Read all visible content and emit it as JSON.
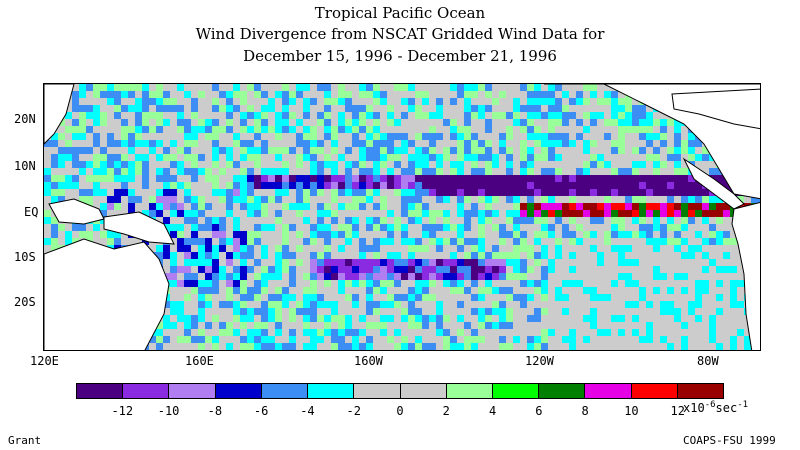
{
  "title": {
    "line1": "Tropical Pacific Ocean",
    "line2": "Wind Divergence from NSCAT Gridded Wind Data for",
    "line3": "December 15, 1996 - December 21, 1996"
  },
  "map": {
    "lat_labels": [
      "20N",
      "10N",
      "EQ",
      "10S",
      "20S"
    ],
    "lon_labels": [
      "120E",
      "160E",
      "160W",
      "120W",
      "80W"
    ],
    "lat_range": [
      -30,
      30
    ],
    "lon_range_deg_east": [
      120,
      285
    ]
  },
  "legend": {
    "colors": [
      "#4b0082",
      "#8a2be2",
      "#b07ef0",
      "#0000cd",
      "#3c8ef5",
      "#00ffff",
      "#cccccc",
      "#cccccc",
      "#99ff99",
      "#00ff00",
      "#007f00",
      "#e600e6",
      "#ff0000",
      "#990000"
    ],
    "ticks": [
      "-12",
      "-10",
      "-8",
      "-6",
      "-4",
      "-2",
      "0",
      "2",
      "4",
      "6",
      "8",
      "10",
      "12"
    ],
    "unit_base": "x10",
    "unit_exp": "-6",
    "unit_tail": "sec",
    "unit_tail_exp": "-1"
  },
  "footer": {
    "left": "Grant",
    "right": "COAPS-FSU 1999"
  }
}
